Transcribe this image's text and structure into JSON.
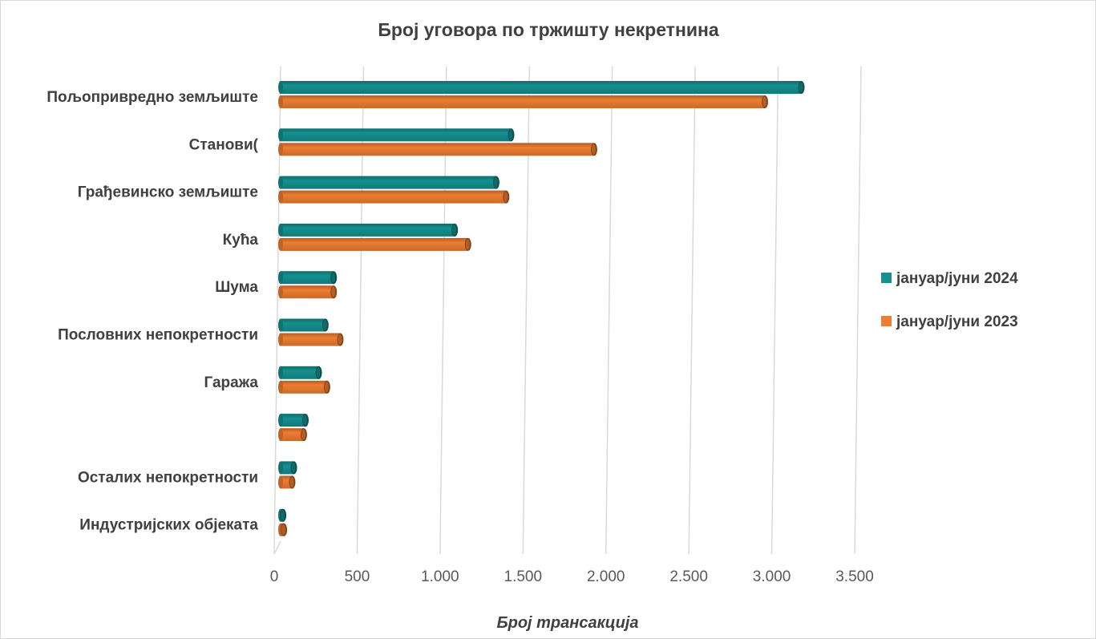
{
  "chart_data": {
    "type": "bar",
    "orientation": "horizontal",
    "title": "Број уговора по тржишту некретнина",
    "xlabel": "Број трансакција",
    "ylabel": "",
    "xlim": [
      0,
      3500
    ],
    "x_ticks": [
      "0",
      "500",
      "1.000",
      "1.500",
      "2.000",
      "2.500",
      "3.000",
      "3.500"
    ],
    "grid": true,
    "legend_position": "right",
    "categories": [
      "Пољопривредно земљиште",
      "Станови(",
      "Грађевинско земљиште",
      "Кућа",
      "Шума",
      "Пословних непокретности",
      "Гаража",
      "",
      "Осталих непокретности",
      "Индустријских објеката"
    ],
    "series": [
      {
        "name": "јануар/јуни 2024",
        "color": "#14908e",
        "values": [
          3140,
          1390,
          1300,
          1050,
          320,
          270,
          230,
          150,
          80,
          15
        ]
      },
      {
        "name": "јануар/јуни 2023",
        "color": "#ed7d31",
        "values": [
          2920,
          1890,
          1360,
          1130,
          320,
          360,
          280,
          140,
          70,
          20
        ]
      }
    ]
  }
}
